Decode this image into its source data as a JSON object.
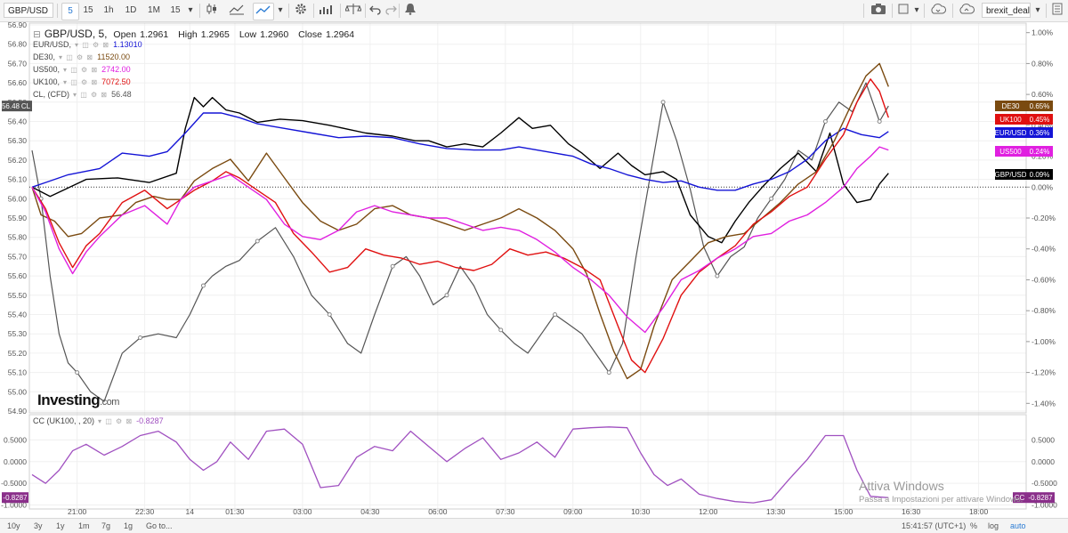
{
  "toolbar": {
    "symbol": "GBP/USD",
    "intervals": [
      "5",
      "15",
      "1h",
      "1D",
      "1M",
      "15"
    ],
    "selected_interval": "5",
    "layout_name": "brexit_deal"
  },
  "header": {
    "title": "GBP/USD, 5,",
    "open_label": "Open",
    "open": "1.2961",
    "high_label": "High",
    "high": "1.2965",
    "low_label": "Low",
    "low": "1.2960",
    "close_label": "Close",
    "close": "1.2964"
  },
  "legend": [
    {
      "name": "EUR/USD,",
      "value": "1.13010",
      "color": "#1414d6"
    },
    {
      "name": "DE30,",
      "value": "11520.00",
      "color": "#7a4a10"
    },
    {
      "name": "US500,",
      "value": "2742.00",
      "color": "#e020e0"
    },
    {
      "name": "UK100,",
      "value": "7072.50",
      "color": "#e01010"
    },
    {
      "name": "CL, (CFD)",
      "value": "56.48",
      "color": "#555555"
    }
  ],
  "logo": {
    "main": "Investing",
    "suffix": ".com"
  },
  "indicator": {
    "label": "CC (UK100, , 20)",
    "value": "-0.8287",
    "color": "#a050c0"
  },
  "bottom_bar": {
    "ranges": [
      "10y",
      "3y",
      "1y",
      "1m",
      "7g",
      "1g",
      "Go to..."
    ],
    "clock": "15:41:57 (UTC+1)",
    "options": [
      "%",
      "log",
      "auto"
    ],
    "selected_option": "auto"
  },
  "watermark": {
    "line1": "Attiva Windows",
    "line2": "Passa a Impostazioni per attivare Windows."
  },
  "chart_data": [
    {
      "type": "line",
      "title": "GBP/USD, 5,",
      "x_ticks": [
        "21:00",
        "22:30",
        "14",
        "01:30",
        "03:00",
        "04:30",
        "06:00",
        "07:30",
        "09:00",
        "10:30",
        "12:00",
        "13:30",
        "15:00",
        "16:30",
        "18:00"
      ],
      "x_tick_positions": [
        1.0,
        2.5,
        3.5,
        4.5,
        6.0,
        7.5,
        9.0,
        10.5,
        12.0,
        13.5,
        15.0,
        16.5,
        18.0,
        19.5,
        21.0
      ],
      "left_axis": {
        "label": "CL",
        "ylim": [
          54.9,
          56.9
        ],
        "ticks": [
          "54.90",
          "55.00",
          "55.10",
          "55.20",
          "55.30",
          "55.40",
          "55.50",
          "55.60",
          "55.70",
          "55.80",
          "55.90",
          "56.00",
          "56.10",
          "56.20",
          "56.30",
          "56.40",
          "56.50",
          "56.60",
          "56.70",
          "56.80",
          "56.90"
        ]
      },
      "right_axis": {
        "unit": "%",
        "ylim": [
          -1.45,
          1.05
        ],
        "ticks": [
          "1.00%",
          "0.80%",
          "0.60%",
          "0.40%",
          "0.20%",
          "0.00%",
          "-0.20%",
          "-0.40%",
          "-0.60%",
          "-0.80%",
          "-1.00%",
          "-1.20%",
          "-1.40%"
        ]
      },
      "series": [
        {
          "name": "GBP/USD",
          "axis": "right",
          "color": "#000000",
          "last": "0.09%",
          "x": [
            0.0,
            0.4,
            1.2,
            1.9,
            2.6,
            3.2,
            3.4,
            3.6,
            3.8,
            4.0,
            4.3,
            4.6,
            5.0,
            5.5,
            6.0,
            6.6,
            7.4,
            8.0,
            8.5,
            8.8,
            9.2,
            9.6,
            10.0,
            10.4,
            10.8,
            11.1,
            11.5,
            11.9,
            12.2,
            12.6,
            13.0,
            13.3,
            13.6,
            14.0,
            14.3,
            14.6,
            15.0,
            15.3,
            15.6,
            15.9,
            16.2,
            16.6,
            17.0,
            17.4,
            17.7,
            18.0,
            18.3,
            18.6,
            18.8,
            19.0
          ],
          "y": [
            0.0,
            -0.06,
            0.05,
            0.06,
            0.03,
            0.09,
            0.38,
            0.58,
            0.52,
            0.58,
            0.5,
            0.48,
            0.42,
            0.44,
            0.43,
            0.4,
            0.35,
            0.33,
            0.3,
            0.3,
            0.26,
            0.28,
            0.26,
            0.35,
            0.45,
            0.38,
            0.4,
            0.28,
            0.22,
            0.12,
            0.22,
            0.14,
            0.08,
            0.1,
            0.05,
            -0.18,
            -0.32,
            -0.36,
            -0.22,
            -0.1,
            0.0,
            0.12,
            0.22,
            0.1,
            0.35,
            0.02,
            -0.1,
            -0.08,
            0.02,
            0.09
          ]
        },
        {
          "name": "EUR/USD",
          "axis": "right",
          "color": "#1414d6",
          "last": "0.36%",
          "x": [
            0.0,
            0.3,
            0.8,
            1.5,
            2.0,
            2.6,
            3.0,
            3.4,
            3.8,
            4.2,
            4.6,
            5.0,
            5.6,
            6.2,
            6.8,
            7.4,
            8.0,
            8.6,
            9.2,
            9.8,
            10.4,
            10.8,
            11.2,
            11.6,
            12.0,
            12.4,
            12.8,
            13.2,
            13.6,
            14.0,
            14.4,
            14.8,
            15.2,
            15.6,
            16.0,
            16.4,
            16.8,
            17.2,
            17.6,
            18.0,
            18.4,
            18.8,
            19.0
          ],
          "y": [
            0.0,
            0.03,
            0.08,
            0.12,
            0.22,
            0.2,
            0.23,
            0.35,
            0.48,
            0.48,
            0.45,
            0.41,
            0.38,
            0.35,
            0.32,
            0.33,
            0.32,
            0.28,
            0.25,
            0.24,
            0.24,
            0.26,
            0.24,
            0.22,
            0.2,
            0.15,
            0.12,
            0.08,
            0.05,
            0.03,
            0.04,
            0.0,
            -0.02,
            -0.02,
            0.02,
            0.05,
            0.1,
            0.18,
            0.3,
            0.38,
            0.34,
            0.32,
            0.36
          ]
        },
        {
          "name": "DE30",
          "axis": "right",
          "color": "#7a4a10",
          "last": "0.65%",
          "x": [
            0.0,
            0.2,
            0.5,
            0.8,
            1.1,
            1.5,
            2.0,
            2.3,
            2.7,
            3.0,
            3.3,
            3.6,
            4.0,
            4.4,
            4.8,
            5.2,
            5.6,
            6.0,
            6.4,
            6.8,
            7.2,
            7.6,
            8.0,
            8.4,
            8.8,
            9.2,
            9.6,
            10.0,
            10.4,
            10.8,
            11.2,
            11.6,
            12.0,
            12.3,
            12.6,
            12.9,
            13.2,
            13.5,
            13.8,
            14.2,
            14.6,
            15.0,
            15.4,
            15.8,
            16.2,
            16.6,
            17.0,
            17.4,
            17.8,
            18.2,
            18.5,
            18.8,
            19.0
          ],
          "y": [
            0.0,
            -0.18,
            -0.22,
            -0.32,
            -0.3,
            -0.2,
            -0.18,
            -0.1,
            -0.06,
            -0.08,
            -0.08,
            0.04,
            0.12,
            0.18,
            0.04,
            0.22,
            0.06,
            -0.1,
            -0.22,
            -0.28,
            -0.24,
            -0.14,
            -0.12,
            -0.18,
            -0.2,
            -0.24,
            -0.28,
            -0.24,
            -0.2,
            -0.14,
            -0.2,
            -0.28,
            -0.4,
            -0.56,
            -0.82,
            -1.06,
            -1.24,
            -1.18,
            -0.9,
            -0.6,
            -0.48,
            -0.36,
            -0.32,
            -0.3,
            -0.2,
            -0.1,
            0.02,
            0.1,
            0.3,
            0.55,
            0.72,
            0.8,
            0.65
          ]
        },
        {
          "name": "UK100",
          "axis": "right",
          "color": "#e01010",
          "last": "0.45%",
          "x": [
            0.0,
            0.3,
            0.6,
            0.9,
            1.2,
            1.5,
            2.0,
            2.5,
            3.0,
            3.3,
            3.6,
            4.0,
            4.3,
            4.6,
            5.0,
            5.4,
            5.8,
            6.2,
            6.6,
            7.0,
            7.4,
            7.8,
            8.2,
            8.6,
            9.0,
            9.4,
            9.8,
            10.2,
            10.6,
            11.0,
            11.4,
            11.8,
            12.2,
            12.6,
            13.0,
            13.3,
            13.6,
            14.0,
            14.4,
            14.8,
            15.2,
            15.6,
            16.0,
            16.4,
            16.8,
            17.2,
            17.6,
            18.0,
            18.3,
            18.6,
            18.8,
            19.0
          ],
          "y": [
            0.0,
            -0.14,
            -0.36,
            -0.52,
            -0.38,
            -0.3,
            -0.1,
            -0.02,
            -0.14,
            -0.08,
            -0.02,
            0.04,
            0.1,
            0.06,
            -0.02,
            -0.1,
            -0.3,
            -0.42,
            -0.55,
            -0.52,
            -0.4,
            -0.44,
            -0.46,
            -0.5,
            -0.48,
            -0.52,
            -0.54,
            -0.5,
            -0.4,
            -0.44,
            -0.42,
            -0.46,
            -0.52,
            -0.6,
            -0.9,
            -1.12,
            -1.2,
            -0.98,
            -0.7,
            -0.55,
            -0.46,
            -0.38,
            -0.24,
            -0.16,
            -0.06,
            0.0,
            0.18,
            0.34,
            0.55,
            0.7,
            0.62,
            0.45
          ]
        },
        {
          "name": "US500",
          "axis": "right",
          "color": "#e020e0",
          "last": "0.24%",
          "x": [
            0.0,
            0.3,
            0.6,
            0.9,
            1.2,
            1.5,
            2.0,
            2.5,
            3.0,
            3.3,
            3.6,
            4.0,
            4.4,
            4.8,
            5.2,
            5.6,
            6.0,
            6.4,
            6.8,
            7.2,
            7.6,
            8.0,
            8.4,
            8.8,
            9.2,
            9.6,
            10.0,
            10.4,
            10.8,
            11.2,
            11.6,
            12.0,
            12.4,
            12.8,
            13.2,
            13.6,
            14.0,
            14.4,
            14.8,
            15.2,
            15.6,
            16.0,
            16.4,
            16.8,
            17.2,
            17.6,
            18.0,
            18.3,
            18.6,
            18.8,
            19.0
          ],
          "y": [
            0.0,
            -0.16,
            -0.4,
            -0.56,
            -0.42,
            -0.32,
            -0.18,
            -0.12,
            -0.24,
            -0.08,
            0.0,
            0.04,
            0.08,
            0.0,
            -0.08,
            -0.24,
            -0.32,
            -0.34,
            -0.28,
            -0.16,
            -0.12,
            -0.16,
            -0.18,
            -0.2,
            -0.2,
            -0.24,
            -0.28,
            -0.26,
            -0.28,
            -0.34,
            -0.42,
            -0.52,
            -0.6,
            -0.7,
            -0.84,
            -0.94,
            -0.78,
            -0.6,
            -0.54,
            -0.46,
            -0.4,
            -0.32,
            -0.3,
            -0.22,
            -0.18,
            -0.1,
            0.0,
            0.12,
            0.2,
            0.26,
            0.24
          ]
        },
        {
          "name": "CL, (CFD)",
          "axis": "left",
          "color": "#555555",
          "last": "56.48",
          "x": [
            0.0,
            0.2,
            0.4,
            0.6,
            0.8,
            1.0,
            1.3,
            1.6,
            2.0,
            2.4,
            2.8,
            3.2,
            3.5,
            3.8,
            4.0,
            4.3,
            4.6,
            5.0,
            5.4,
            5.8,
            6.2,
            6.6,
            7.0,
            7.3,
            7.6,
            8.0,
            8.3,
            8.6,
            8.9,
            9.2,
            9.5,
            9.8,
            10.1,
            10.4,
            10.7,
            11.0,
            11.3,
            11.6,
            11.9,
            12.2,
            12.5,
            12.8,
            13.1,
            13.4,
            13.7,
            14.0,
            14.3,
            14.6,
            14.9,
            15.2,
            15.5,
            15.8,
            16.1,
            16.4,
            16.7,
            17.0,
            17.3,
            17.6,
            17.9,
            18.2,
            18.5,
            18.8,
            19.0
          ],
          "y": [
            56.25,
            56.0,
            55.6,
            55.3,
            55.15,
            55.1,
            55.0,
            54.95,
            55.2,
            55.28,
            55.3,
            55.28,
            55.4,
            55.55,
            55.6,
            55.65,
            55.68,
            55.78,
            55.85,
            55.7,
            55.5,
            55.4,
            55.25,
            55.2,
            55.4,
            55.65,
            55.7,
            55.6,
            55.45,
            55.5,
            55.65,
            55.55,
            55.4,
            55.32,
            55.25,
            55.2,
            55.3,
            55.4,
            55.35,
            55.3,
            55.2,
            55.1,
            55.25,
            55.7,
            56.1,
            56.5,
            56.3,
            56.05,
            55.75,
            55.6,
            55.7,
            55.75,
            55.9,
            56.0,
            56.1,
            56.25,
            56.2,
            56.4,
            56.5,
            56.45,
            56.6,
            56.4,
            56.48
          ]
        }
      ]
    },
    {
      "type": "line",
      "title": "CC (UK100, , 20)",
      "ylim": [
        -1.05,
        1.0
      ],
      "y_ticks": [
        "0.5000",
        "0.0000",
        "-0.5000",
        "-1.0000"
      ],
      "series": [
        {
          "name": "CC (UK100, , 20)",
          "color": "#a050c0",
          "last": "-0.8287",
          "x": [
            0.0,
            0.3,
            0.6,
            0.9,
            1.2,
            1.6,
            2.0,
            2.4,
            2.8,
            3.2,
            3.5,
            3.8,
            4.1,
            4.4,
            4.8,
            5.2,
            5.6,
            6.0,
            6.4,
            6.8,
            7.2,
            7.6,
            8.0,
            8.4,
            8.8,
            9.2,
            9.6,
            10.0,
            10.4,
            10.8,
            11.2,
            11.6,
            12.0,
            12.4,
            12.8,
            13.2,
            13.5,
            13.8,
            14.1,
            14.4,
            14.8,
            15.2,
            15.6,
            16.0,
            16.4,
            16.8,
            17.2,
            17.6,
            18.0,
            18.3,
            18.6,
            19.0
          ],
          "y": [
            -0.3,
            -0.5,
            -0.2,
            0.25,
            0.4,
            0.15,
            0.35,
            0.6,
            0.7,
            0.45,
            0.05,
            -0.2,
            0.0,
            0.45,
            0.05,
            0.7,
            0.75,
            0.4,
            -0.6,
            -0.55,
            0.1,
            0.35,
            0.25,
            0.7,
            0.35,
            0.0,
            0.3,
            0.55,
            0.05,
            0.2,
            0.45,
            0.1,
            0.75,
            0.78,
            0.8,
            0.78,
            0.2,
            -0.3,
            -0.55,
            -0.4,
            -0.75,
            -0.85,
            -0.92,
            -0.95,
            -0.88,
            -0.4,
            0.05,
            0.6,
            0.6,
            -0.2,
            -0.8,
            -0.83
          ]
        }
      ]
    }
  ]
}
